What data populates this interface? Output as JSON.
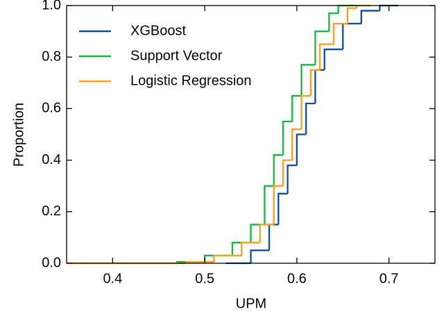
{
  "chart_data": {
    "type": "line",
    "step": "post",
    "xlabel": "UPM",
    "ylabel": "Proportion",
    "xlim": [
      0.35,
      0.75
    ],
    "ylim": [
      0,
      1.0
    ],
    "xticks": [
      0.4,
      0.5,
      0.6,
      0.7
    ],
    "yticks": [
      {
        "value": 0,
        "label": "0.0"
      },
      0.2,
      0.4,
      0.6,
      0.8,
      {
        "value": 1.0,
        "label": "1.0"
      }
    ],
    "legend": "upper left",
    "series": [
      {
        "name": "XGBoost",
        "color": "#0d4f9c",
        "x": [
          0.523,
          0.55,
          0.57,
          0.58,
          0.59,
          0.6,
          0.61,
          0.62,
          0.63,
          0.65,
          0.67,
          0.69,
          0.71
        ],
        "values": [
          0,
          0.05,
          0.15,
          0.27,
          0.38,
          0.5,
          0.62,
          0.75,
          0.83,
          0.93,
          0.98,
          1.0,
          1.0
        ]
      },
      {
        "name": "Support Vector",
        "color": "#15b83c",
        "x": [
          0.35,
          0.47,
          0.5,
          0.53,
          0.55,
          0.565,
          0.575,
          0.585,
          0.595,
          0.605,
          0.62,
          0.635,
          0.645,
          0.665
        ],
        "values": [
          0,
          0.005,
          0.03,
          0.08,
          0.15,
          0.3,
          0.42,
          0.55,
          0.65,
          0.77,
          0.9,
          0.97,
          1.0,
          1.0
        ]
      },
      {
        "name": "Logistic Regression",
        "color": "#ff9d1c",
        "x": [
          0.35,
          0.48,
          0.51,
          0.54,
          0.56,
          0.575,
          0.585,
          0.595,
          0.605,
          0.615,
          0.625,
          0.64,
          0.655,
          0.665,
          0.68
        ],
        "values": [
          0,
          0.005,
          0.03,
          0.08,
          0.15,
          0.3,
          0.4,
          0.52,
          0.65,
          0.75,
          0.85,
          0.93,
          0.99,
          1.0,
          1.0
        ]
      }
    ]
  }
}
